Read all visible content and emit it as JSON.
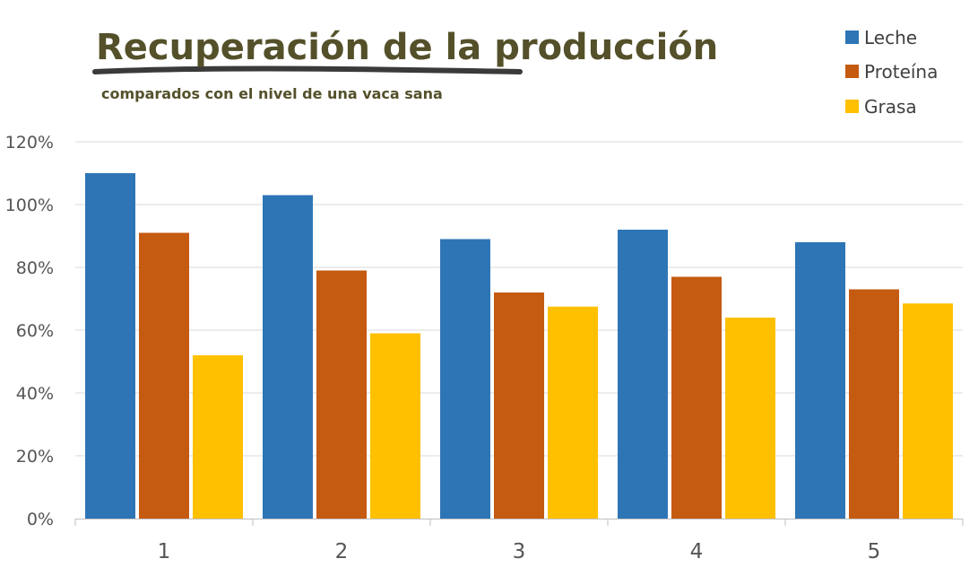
{
  "chart_data": {
    "type": "bar",
    "title": "Recuperación de la producción",
    "subtitle": "comparados con el nivel de una vaca sana",
    "categories": [
      "1",
      "2",
      "3",
      "4",
      "5"
    ],
    "series": [
      {
        "name": "Leche",
        "color": "#2e75b6",
        "values": [
          110,
          103,
          89,
          92,
          88
        ]
      },
      {
        "name": "Proteína",
        "color": "#c55a11",
        "values": [
          91,
          79,
          72,
          77,
          73
        ]
      },
      {
        "name": "Grasa",
        "color": "#ffc000",
        "values": [
          52,
          59,
          67.5,
          64,
          68.5
        ]
      }
    ],
    "yticks": [
      "0%",
      "20%",
      "40%",
      "60%",
      "80%",
      "100%",
      "120%"
    ],
    "ylim": [
      0,
      120
    ],
    "xlabel": "",
    "ylabel": "",
    "grid": true,
    "legend": "top-right",
    "colors": {
      "title": "#54502a",
      "underline": "#3a3a3a",
      "grid": "#d9d9d9"
    }
  }
}
